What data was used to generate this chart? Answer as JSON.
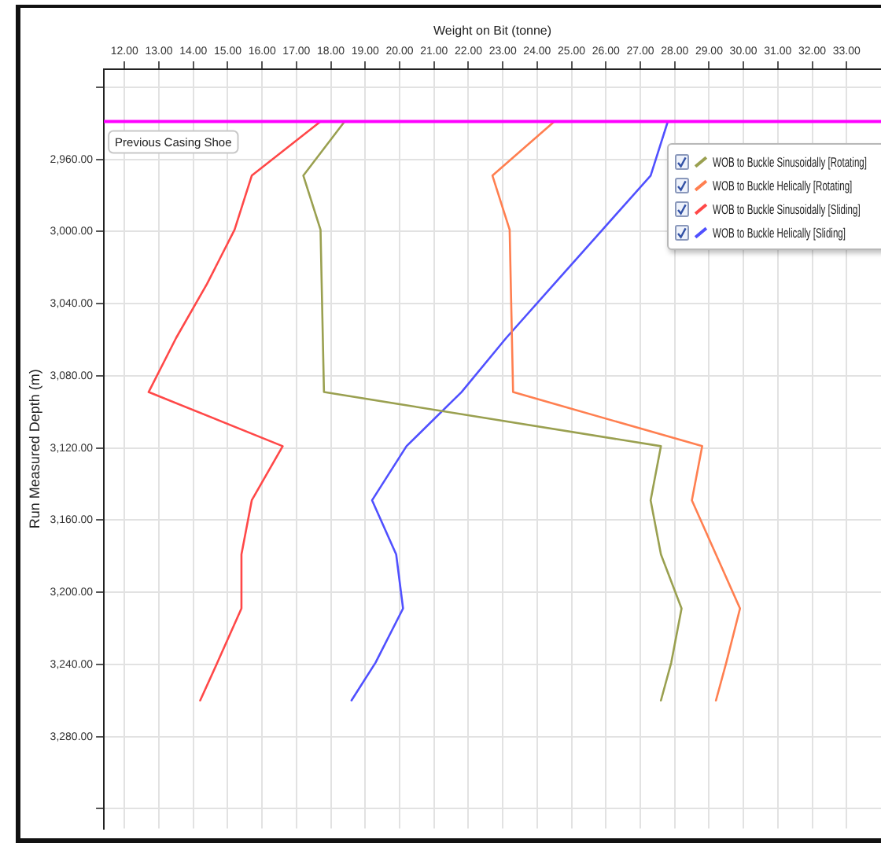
{
  "chart_data": {
    "type": "line",
    "xlabel": "Weight on Bit (tonne)",
    "ylabel": "Run Measured Depth (m)",
    "xlim": [
      11.4,
      34.0
    ],
    "xticks": [
      {
        "value": 12,
        "label": "12.00"
      },
      {
        "value": 13,
        "label": "13.00"
      },
      {
        "value": 14,
        "label": "14.00"
      },
      {
        "value": 15,
        "label": "15.00"
      },
      {
        "value": 16,
        "label": "16.00"
      },
      {
        "value": 17,
        "label": "17.00"
      },
      {
        "value": 18,
        "label": "18.00"
      },
      {
        "value": 19,
        "label": "19.00"
      },
      {
        "value": 20,
        "label": "20.00"
      },
      {
        "value": 21,
        "label": "21.00"
      },
      {
        "value": 22,
        "label": "22.00"
      },
      {
        "value": 23,
        "label": "23.00"
      },
      {
        "value": 24,
        "label": "24.00"
      },
      {
        "value": 25,
        "label": "25.00"
      },
      {
        "value": 26,
        "label": "26.00"
      },
      {
        "value": 27,
        "label": "27.00"
      },
      {
        "value": 28,
        "label": "28.00"
      },
      {
        "value": 29,
        "label": "29.00"
      },
      {
        "value": 30,
        "label": "30.00"
      },
      {
        "value": 31,
        "label": "31.00"
      },
      {
        "value": 32,
        "label": "32.00"
      },
      {
        "value": 33,
        "label": "33.00"
      }
    ],
    "ylim": [
      3331,
      2910
    ],
    "yticks": [
      {
        "value": 2920,
        "label": null
      },
      {
        "value": 2960,
        "label": "2,960.00"
      },
      {
        "value": 3000,
        "label": "3,000.00"
      },
      {
        "value": 3040,
        "label": "3,040.00"
      },
      {
        "value": 3080,
        "label": "3,080.00"
      },
      {
        "value": 3120,
        "label": "3,120.00"
      },
      {
        "value": 3160,
        "label": "3,160.00"
      },
      {
        "value": 3200,
        "label": "3,200.00"
      },
      {
        "value": 3240,
        "label": "3,240.00"
      },
      {
        "value": 3280,
        "label": "3,280.00"
      },
      {
        "value": 3320,
        "label": null
      }
    ],
    "grid": true,
    "legend": "top right",
    "ref_lines": [
      {
        "axis": "y",
        "value": 2939,
        "label": "Previous Casing Shoe",
        "color": "#ff00ff"
      }
    ],
    "series": [
      {
        "name": "WOB to Buckle Sinusoidally [Rotating]",
        "color": "#9aa050",
        "x": [
          18.4,
          17.2,
          17.7,
          17.8,
          27.6,
          27.3,
          27.6,
          28.2,
          27.9,
          27.6
        ],
        "values": [
          2939,
          2969,
          2999,
          3089,
          3119,
          3149,
          3179,
          3209,
          3239,
          3260
        ]
      },
      {
        "name": "WOB to Buckle Helically [Rotating]",
        "color": "#ff7f50",
        "x": [
          24.5,
          22.7,
          23.2,
          23.3,
          28.8,
          28.5,
          29.2,
          29.9,
          29.5,
          29.2
        ],
        "values": [
          2939,
          2969,
          2999,
          3089,
          3119,
          3149,
          3179,
          3209,
          3239,
          3260
        ]
      },
      {
        "name": "WOB to Buckle Sinusoidally [Sliding]",
        "color": "#ff4848",
        "x": [
          17.7,
          15.7,
          15.2,
          14.4,
          13.5,
          12.7,
          16.6,
          15.7,
          15.4,
          15.4,
          14.7,
          14.2
        ],
        "values": [
          2939,
          2969,
          2999,
          3029,
          3059,
          3089,
          3119,
          3149,
          3179,
          3209,
          3239,
          3260
        ]
      },
      {
        "name": "WOB to Buckle Helically [Sliding]",
        "color": "#5050ff",
        "x": [
          27.8,
          27.3,
          25.9,
          24.5,
          23.1,
          21.8,
          20.2,
          19.2,
          19.9,
          20.1,
          19.3,
          18.6
        ],
        "values": [
          2939,
          2969,
          2999,
          3029,
          3059,
          3089,
          3119,
          3149,
          3179,
          3209,
          3239,
          3260
        ]
      }
    ]
  }
}
